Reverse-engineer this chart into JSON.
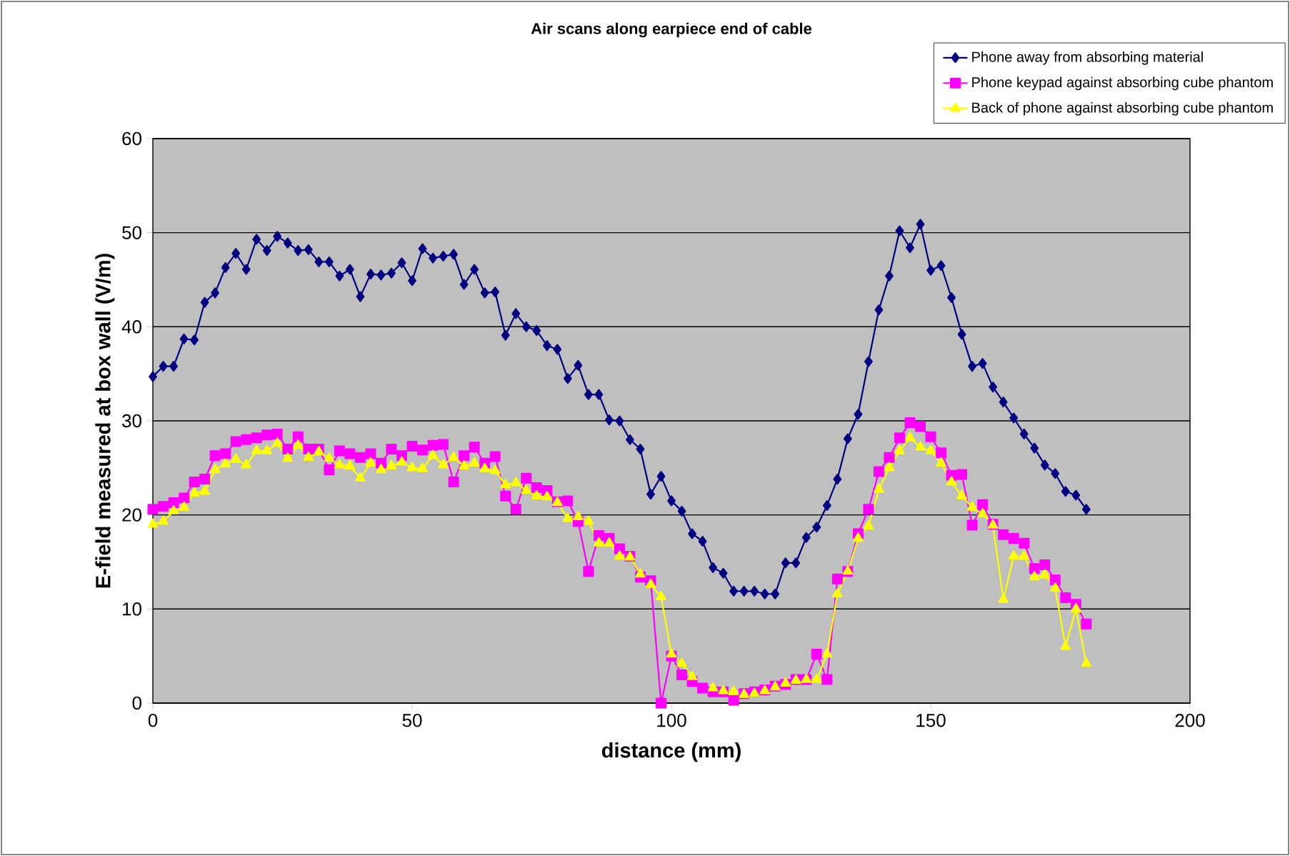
{
  "chart_data": {
    "type": "line",
    "title": "Air scans along earpiece end of cable",
    "xlabel": "distance (mm)",
    "ylabel": "E-field measured at box wall (V/m)",
    "x": [
      0,
      2,
      4,
      6,
      8,
      10,
      12,
      14,
      16,
      18,
      20,
      22,
      24,
      26,
      28,
      30,
      32,
      34,
      36,
      38,
      40,
      42,
      44,
      46,
      48,
      50,
      52,
      54,
      56,
      58,
      60,
      62,
      64,
      66,
      68,
      70,
      72,
      74,
      76,
      78,
      80,
      82,
      84,
      86,
      88,
      90,
      92,
      94,
      96,
      98,
      100,
      102,
      104,
      106,
      108,
      110,
      112,
      114,
      116,
      118,
      120,
      122,
      124,
      126,
      128,
      130,
      132,
      134,
      136,
      138,
      140,
      142,
      144,
      146,
      148,
      150,
      152,
      154,
      156,
      158,
      160,
      162,
      164,
      166,
      168,
      170,
      172,
      174,
      176,
      178,
      180
    ],
    "series": [
      {
        "name": "Phone away from absorbing material",
        "color": "#000080",
        "marker": "diamond",
        "values": [
          34.7,
          35.8,
          35.8,
          38.7,
          38.6,
          42.6,
          43.6,
          46.3,
          47.8,
          46.1,
          49.3,
          48.1,
          49.6,
          48.9,
          48.1,
          48.2,
          46.9,
          46.9,
          45.4,
          46.1,
          43.2,
          45.6,
          45.5,
          45.7,
          46.8,
          44.9,
          48.3,
          47.3,
          47.5,
          47.7,
          44.5,
          46.1,
          43.6,
          43.7,
          39.1,
          41.4,
          40.0,
          39.6,
          38.0,
          37.6,
          34.5,
          35.9,
          32.8,
          32.8,
          30.1,
          30.0,
          28.0,
          27.0,
          22.2,
          24.1,
          21.5,
          20.4,
          18.0,
          17.2,
          14.4,
          13.8,
          11.9,
          11.9,
          11.9,
          11.6,
          11.6,
          14.9,
          14.9,
          17.6,
          18.7,
          21.0,
          23.8,
          28.1,
          30.7,
          36.3,
          41.8,
          45.4,
          50.2,
          48.4,
          50.9,
          46.0,
          46.5,
          43.1,
          39.2,
          35.8,
          36.1,
          33.6,
          32.0,
          30.3,
          28.6,
          27.1,
          25.3,
          24.4,
          22.5,
          22.1,
          20.6
        ]
      },
      {
        "name": "Phone keypad against absorbing cube phantom",
        "color": "#ff00ff",
        "marker": "square",
        "values": [
          20.6,
          20.9,
          21.3,
          21.8,
          23.5,
          23.8,
          26.3,
          26.5,
          27.8,
          28.0,
          28.2,
          28.5,
          28.6,
          27.0,
          28.3,
          27.0,
          27.0,
          24.8,
          26.8,
          26.5,
          26.1,
          26.5,
          25.5,
          27.0,
          26.3,
          27.3,
          26.9,
          27.4,
          27.5,
          23.5,
          26.3,
          27.2,
          25.5,
          26.2,
          22.0,
          20.6,
          23.9,
          22.9,
          22.6,
          21.4,
          21.5,
          19.3,
          14.0,
          17.8,
          17.5,
          16.4,
          15.6,
          13.4,
          13.0,
          0.0,
          5.0,
          3.0,
          2.3,
          1.6,
          1.2,
          1.2,
          0.3,
          1.0,
          1.2,
          1.4,
          1.8,
          2.0,
          2.5,
          2.5,
          5.2,
          2.5,
          13.2,
          14.0,
          18.0,
          20.6,
          24.6,
          26.1,
          28.2,
          29.8,
          29.4,
          28.3,
          26.6,
          24.2,
          24.3,
          18.9,
          21.1,
          19.0,
          17.9,
          17.5,
          17.0,
          14.3,
          14.7,
          13.1,
          11.2,
          10.5,
          8.4
        ]
      },
      {
        "name": "Back of phone against absorbing cube phantom",
        "color": "#ffff00",
        "marker": "triangle",
        "values": [
          19.0,
          19.3,
          20.4,
          20.8,
          22.3,
          22.5,
          24.8,
          25.4,
          25.9,
          25.3,
          26.8,
          26.8,
          27.6,
          26.0,
          27.4,
          26.1,
          26.7,
          26.0,
          25.3,
          25.2,
          23.9,
          25.5,
          24.8,
          25.2,
          25.6,
          25.0,
          24.9,
          26.3,
          25.3,
          26.1,
          25.2,
          25.5,
          24.9,
          24.7,
          23.2,
          23.4,
          22.6,
          22.0,
          21.9,
          21.3,
          19.6,
          19.8,
          19.3,
          17.0,
          17.0,
          15.6,
          15.5,
          13.7,
          12.6,
          11.3,
          5.2,
          4.2,
          2.8,
          null,
          1.6,
          1.3,
          1.2,
          0.9,
          1.0,
          1.3,
          1.7,
          2.1,
          2.4,
          2.5,
          2.5,
          5.2,
          11.6,
          14.0,
          17.5,
          18.8,
          22.7,
          25.0,
          26.8,
          28.2,
          27.2,
          26.8,
          25.5,
          23.5,
          22.0,
          20.8,
          20.1,
          18.9,
          11.0,
          15.6,
          15.6,
          13.4,
          13.6,
          12.2,
          6.0,
          10.0,
          4.2
        ]
      }
    ],
    "xlim": [
      0,
      200
    ],
    "xticks": [
      0,
      50,
      100,
      150,
      200
    ],
    "ylim": [
      0,
      60
    ],
    "yticks": [
      0,
      10,
      20,
      30,
      40,
      50,
      60
    ],
    "grid": "y",
    "legend": "top right",
    "line_style": "solid"
  }
}
